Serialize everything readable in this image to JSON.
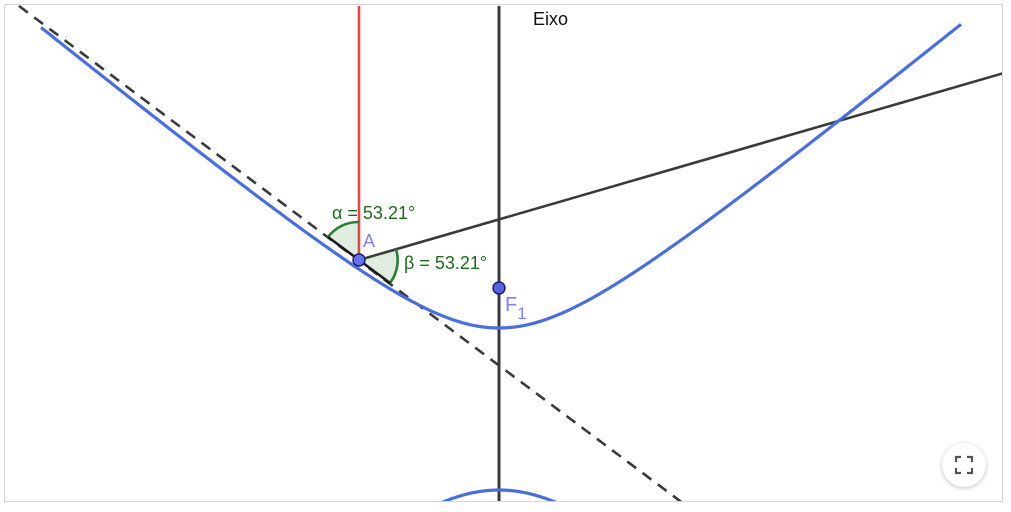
{
  "labels": {
    "axis": "Eixo",
    "point_a": "A",
    "focus_base": "F",
    "focus_sub": "1",
    "alpha": "α = 53.21°",
    "beta": "β = 53.21°"
  },
  "colors": {
    "curve": "#4a6fd8",
    "point_fill": "#6573e8",
    "point_stroke": "#1a1a6e",
    "point_label": "#7b84ea",
    "axis_line": "#3a3a3a",
    "ray": "#3a3a3a",
    "normal_line": "#e8473d",
    "tangent_dashed": "#3a3a3a",
    "angle": "#2e7d32",
    "angle_fill": "#2e7d32"
  },
  "icons": {
    "fullscreen": "fullscreen-icon"
  }
}
